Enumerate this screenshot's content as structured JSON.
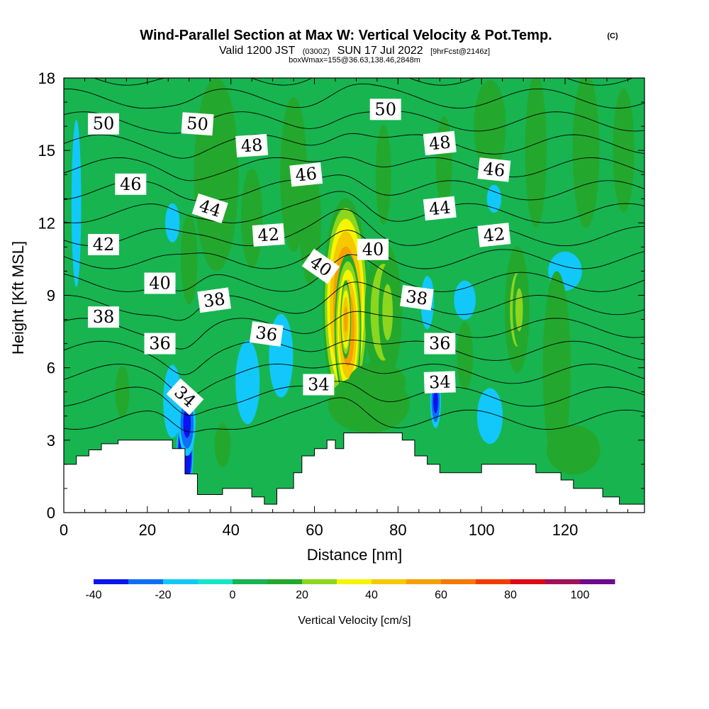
{
  "title": {
    "main": "Wind-Parallel Section at Max W: Vertical Velocity & Pot.Temp.",
    "copyright": "(C)",
    "valid_prefix": "Valid 1200 JST",
    "valid_utc": "(0300Z)",
    "valid_date": "SUN 17 Jul 2022",
    "forecast": "[9hrFcst@2146z]",
    "box_info": "boxWmax=155@36.63,138.46,2848m"
  },
  "chart_data": {
    "type": "heatmap",
    "xlabel": "Distance [nm]",
    "ylabel": "Height [Kft MSL]",
    "xlim": [
      0,
      139
    ],
    "ylim": [
      0,
      18
    ],
    "x_ticks": [
      "0",
      "20",
      "40",
      "60",
      "80",
      "100",
      "120"
    ],
    "y_ticks": [
      "0",
      "3",
      "6",
      "9",
      "12",
      "15",
      "18"
    ],
    "colorbar": {
      "label": "Vertical Velocity [cm/s]",
      "boundaries": [
        -40,
        -30,
        -20,
        -10,
        0,
        10,
        20,
        30,
        40,
        50,
        60,
        70,
        80,
        90,
        100,
        110
      ],
      "tick_labels": [
        "-40",
        "-20",
        "0",
        "20",
        "40",
        "60",
        "80",
        "100"
      ],
      "colors": [
        "#0a14f0",
        "#0f6ef5",
        "#12c8fa",
        "#14e6c8",
        "#18b450",
        "#23a82d",
        "#8cd61e",
        "#f5f500",
        "#f5c800",
        "#f5a000",
        "#f57800",
        "#f03c00",
        "#dc0a14",
        "#a0125a",
        "#6e0a8c"
      ]
    },
    "background_w": 3,
    "terrain_kft": [
      [
        0,
        2.0
      ],
      [
        3,
        2.0
      ],
      [
        3,
        2.35
      ],
      [
        6,
        2.35
      ],
      [
        6,
        2.6
      ],
      [
        9,
        2.6
      ],
      [
        9,
        2.85
      ],
      [
        13,
        2.85
      ],
      [
        13,
        3.0
      ],
      [
        26,
        3.0
      ],
      [
        26,
        2.65
      ],
      [
        29,
        2.65
      ],
      [
        29,
        1.6
      ],
      [
        32,
        1.6
      ],
      [
        32,
        0.75
      ],
      [
        38,
        0.75
      ],
      [
        38,
        1.0
      ],
      [
        45,
        1.0
      ],
      [
        45,
        0.65
      ],
      [
        48,
        0.65
      ],
      [
        48,
        0.35
      ],
      [
        51,
        0.35
      ],
      [
        51,
        1.0
      ],
      [
        55,
        1.0
      ],
      [
        55,
        1.65
      ],
      [
        57,
        1.65
      ],
      [
        57,
        2.35
      ],
      [
        60,
        2.35
      ],
      [
        60,
        2.65
      ],
      [
        63,
        2.65
      ],
      [
        63,
        3.0
      ],
      [
        65,
        3.0
      ],
      [
        65,
        2.65
      ],
      [
        67,
        2.65
      ],
      [
        67,
        3.3
      ],
      [
        81,
        3.3
      ],
      [
        81,
        3.0
      ],
      [
        84,
        3.0
      ],
      [
        84,
        2.35
      ],
      [
        87,
        2.35
      ],
      [
        87,
        2.0
      ],
      [
        90,
        2.0
      ],
      [
        90,
        1.65
      ],
      [
        100,
        1.65
      ],
      [
        100,
        2.0
      ],
      [
        113,
        2.0
      ],
      [
        113,
        1.65
      ],
      [
        119,
        1.65
      ],
      [
        119,
        1.35
      ],
      [
        122,
        1.35
      ],
      [
        122,
        1.0
      ],
      [
        129,
        1.0
      ],
      [
        129,
        0.65
      ],
      [
        133,
        0.65
      ],
      [
        133,
        0.35
      ],
      [
        139,
        0.35
      ]
    ],
    "blobs": [
      {
        "x": 67.5,
        "y": 8.6,
        "rx": 6.0,
        "ry": 4.8,
        "w": 62
      },
      {
        "x": 68,
        "y": 7.6,
        "rx": 3.5,
        "ry": 3.4,
        "w": 58
      },
      {
        "x": 67.5,
        "y": 8.0,
        "rx": 1.4,
        "ry": 1.8,
        "w": 50
      },
      {
        "x": 76.5,
        "y": 8.3,
        "rx": 5.5,
        "ry": 3.6,
        "w": 24
      },
      {
        "x": 77.5,
        "y": 8.3,
        "rx": 2.8,
        "ry": 2.6,
        "w": 20
      },
      {
        "x": 73,
        "y": 4.5,
        "rx": 13,
        "ry": 1.6,
        "w": 18
      },
      {
        "x": 75,
        "y": 5.4,
        "rx": 10,
        "ry": 1.2,
        "w": 14
      },
      {
        "x": 108.5,
        "y": 8.4,
        "rx": 3.8,
        "ry": 3.4,
        "w": 20
      },
      {
        "x": 109,
        "y": 8.4,
        "rx": 2.0,
        "ry": 2.0,
        "w": 20
      },
      {
        "x": 119,
        "y": 4.6,
        "rx": 1.7,
        "ry": 2.6,
        "w": 20
      },
      {
        "x": 76.5,
        "y": 14,
        "rx": 3.2,
        "ry": 3.6,
        "w": 10
      },
      {
        "x": 29,
        "y": 2.5,
        "rx": 2.2,
        "ry": 1.9,
        "w": -55
      },
      {
        "x": 29.5,
        "y": 3.7,
        "rx": 2.4,
        "ry": 1.6,
        "w": -30
      },
      {
        "x": 26,
        "y": 4.6,
        "rx": 3.2,
        "ry": 2.2,
        "w": -14
      },
      {
        "x": 44,
        "y": 5.4,
        "rx": 5,
        "ry": 3,
        "w": -10
      },
      {
        "x": 52,
        "y": 6.5,
        "rx": 5,
        "ry": 3,
        "w": -10
      },
      {
        "x": 89,
        "y": 4.6,
        "rx": 1.5,
        "ry": 1.3,
        "w": -30
      },
      {
        "x": 87.5,
        "y": 8.8,
        "rx": 1.3,
        "ry": 1.1,
        "w": -28
      },
      {
        "x": 87,
        "y": 8.7,
        "rx": 2.2,
        "ry": 1.6,
        "w": -14
      },
      {
        "x": 102,
        "y": 4.0,
        "rx": 4.8,
        "ry": 1.8,
        "w": -12
      },
      {
        "x": 96,
        "y": 8.8,
        "rx": 4.5,
        "ry": 1.4,
        "w": -10
      },
      {
        "x": 120,
        "y": 10.0,
        "rx": 7,
        "ry": 1.4,
        "w": -10
      },
      {
        "x": 103,
        "y": 13.0,
        "rx": 3,
        "ry": 1.0,
        "w": -10
      },
      {
        "x": 3,
        "y": 12.8,
        "rx": 2,
        "ry": 6,
        "w": -10
      },
      {
        "x": 26,
        "y": 12.0,
        "rx": 3,
        "ry": 1.4,
        "w": -10
      },
      {
        "x": 36.5,
        "y": 14,
        "rx": 8,
        "ry": 6,
        "w": 13
      },
      {
        "x": 45,
        "y": 12.2,
        "rx": 4,
        "ry": 3.2,
        "w": 12
      },
      {
        "x": 55,
        "y": 14,
        "rx": 5,
        "ry": 5,
        "w": 12
      },
      {
        "x": 59,
        "y": 12,
        "rx": 4,
        "ry": 4,
        "w": 12
      },
      {
        "x": 102,
        "y": 16,
        "rx": 6,
        "ry": 3,
        "w": 12
      },
      {
        "x": 113,
        "y": 15,
        "rx": 4,
        "ry": 5,
        "w": 12
      },
      {
        "x": 125,
        "y": 15,
        "rx": 5,
        "ry": 5,
        "w": 12
      },
      {
        "x": 134,
        "y": 15,
        "rx": 4,
        "ry": 4,
        "w": 12
      },
      {
        "x": 91,
        "y": 14.5,
        "rx": 3,
        "ry": 3,
        "w": 12
      },
      {
        "x": 118,
        "y": 6,
        "rx": 5,
        "ry": 6,
        "w": 13
      },
      {
        "x": 96,
        "y": 6.5,
        "rx": 3,
        "ry": 2.2,
        "w": 12
      },
      {
        "x": 30,
        "y": 10.5,
        "rx": 3,
        "ry": 2.8,
        "w": 13
      },
      {
        "x": 14,
        "y": 5.0,
        "rx": 2.5,
        "ry": 1.6,
        "w": 13
      },
      {
        "x": 122,
        "y": 2.6,
        "rx": 10,
        "ry": 1.6,
        "w": 12
      },
      {
        "x": 38,
        "y": 2.8,
        "rx": 3,
        "ry": 1.4,
        "w": 12
      }
    ],
    "isentrope_levels": [
      33,
      34,
      35,
      36,
      37,
      38,
      39,
      40,
      41,
      42,
      43,
      44,
      45,
      46,
      47,
      48,
      49,
      50
    ],
    "contour_labels": [
      {
        "text": "50",
        "x": 9.5,
        "y": 16.1,
        "angle": 0
      },
      {
        "text": "50",
        "x": 32,
        "y": 16.1,
        "angle": 4
      },
      {
        "text": "50",
        "x": 77,
        "y": 16.7,
        "angle": 0
      },
      {
        "text": "48",
        "x": 45,
        "y": 15.2,
        "angle": -4
      },
      {
        "text": "48",
        "x": 90,
        "y": 15.3,
        "angle": -6
      },
      {
        "text": "46",
        "x": 16,
        "y": 13.6,
        "angle": 0
      },
      {
        "text": "46",
        "x": 58,
        "y": 14.0,
        "angle": -6
      },
      {
        "text": "46",
        "x": 103,
        "y": 14.2,
        "angle": 6
      },
      {
        "text": "44",
        "x": 35,
        "y": 12.6,
        "angle": 18
      },
      {
        "text": "44",
        "x": 90,
        "y": 12.6,
        "angle": -6
      },
      {
        "text": "42",
        "x": 9.5,
        "y": 11.1,
        "angle": 0
      },
      {
        "text": "42",
        "x": 49,
        "y": 11.5,
        "angle": -4
      },
      {
        "text": "42",
        "x": 103,
        "y": 11.5,
        "angle": -6
      },
      {
        "text": "40",
        "x": 23,
        "y": 9.5,
        "angle": 0
      },
      {
        "text": "40",
        "x": 61.5,
        "y": 10.2,
        "angle": 35
      },
      {
        "text": "40",
        "x": 74,
        "y": 10.9,
        "angle": 0
      },
      {
        "text": "38",
        "x": 9.5,
        "y": 8.1,
        "angle": 0
      },
      {
        "text": "38",
        "x": 36,
        "y": 8.8,
        "angle": -8
      },
      {
        "text": "38",
        "x": 84.5,
        "y": 8.9,
        "angle": 8
      },
      {
        "text": "36",
        "x": 23,
        "y": 7.0,
        "angle": 0
      },
      {
        "text": "36",
        "x": 48.5,
        "y": 7.4,
        "angle": 8
      },
      {
        "text": "36",
        "x": 90,
        "y": 7.0,
        "angle": 0
      },
      {
        "text": "34",
        "x": 29,
        "y": 4.8,
        "angle": 42
      },
      {
        "text": "34",
        "x": 61,
        "y": 5.3,
        "angle": 0
      },
      {
        "text": "34",
        "x": 90,
        "y": 5.4,
        "angle": -2
      }
    ]
  }
}
